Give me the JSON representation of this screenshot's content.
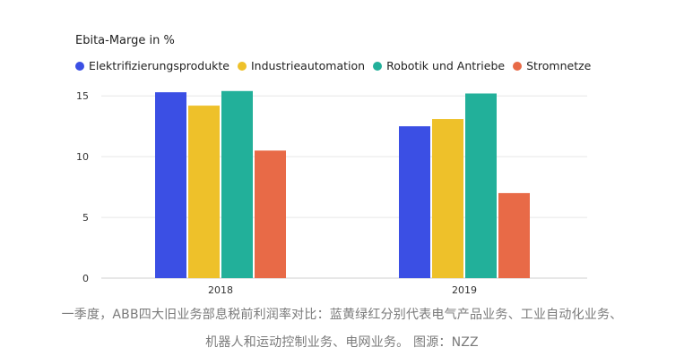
{
  "chart_data": {
    "type": "bar",
    "title": "Ebita-Marge in %",
    "categories": [
      "2018",
      "2019"
    ],
    "series": [
      {
        "name": "Elektrifizierungsprodukte",
        "color": "#3b4fe4",
        "values": [
          15.3,
          12.5
        ]
      },
      {
        "name": "Industrieautomation",
        "color": "#eec12a",
        "values": [
          14.2,
          13.1
        ]
      },
      {
        "name": "Robotik und Antriebe",
        "color": "#22b09a",
        "values": [
          15.4,
          15.2
        ]
      },
      {
        "name": "Stromnetze",
        "color": "#e86a47",
        "values": [
          10.5,
          7.0
        ]
      }
    ],
    "yticks": [
      0,
      5,
      10,
      15
    ],
    "ylim": [
      0,
      15.9
    ],
    "grid": true,
    "legend": "top-left"
  },
  "caption": {
    "line1": "一季度，ABB四大旧业务部息税前利润率对比：蓝黄绿红分别代表电气产品业务、工业自动化业务、",
    "line2": "机器人和运动控制业务、电网业务。 图源：NZZ"
  }
}
